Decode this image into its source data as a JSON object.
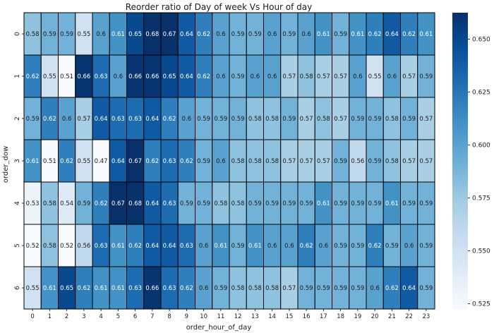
{
  "chart_data": {
    "type": "heatmap",
    "title": "Reorder ratio of Day of week Vs Hour of day",
    "xlabel": "order_hour_of_day",
    "ylabel": "order_dow",
    "x": [
      "0",
      "1",
      "2",
      "3",
      "4",
      "5",
      "6",
      "7",
      "8",
      "9",
      "10",
      "11",
      "12",
      "13",
      "14",
      "15",
      "16",
      "17",
      "18",
      "19",
      "20",
      "21",
      "22",
      "23"
    ],
    "y": [
      "0",
      "1",
      "2",
      "3",
      "4",
      "5",
      "6"
    ],
    "values": [
      [
        0.58,
        0.59,
        0.59,
        0.55,
        0.6,
        0.61,
        0.65,
        0.68,
        0.67,
        0.64,
        0.62,
        0.6,
        0.59,
        0.59,
        0.6,
        0.59,
        0.6,
        0.61,
        0.59,
        0.61,
        0.62,
        0.64,
        0.62,
        0.61
      ],
      [
        0.62,
        0.55,
        0.51,
        0.66,
        0.63,
        0.6,
        0.66,
        0.66,
        0.65,
        0.64,
        0.62,
        0.6,
        0.59,
        0.6,
        0.6,
        0.57,
        0.58,
        0.57,
        0.57,
        0.6,
        0.55,
        0.6,
        0.57,
        0.59
      ],
      [
        0.59,
        0.62,
        0.6,
        0.57,
        0.64,
        0.63,
        0.63,
        0.64,
        0.62,
        0.6,
        0.59,
        0.59,
        0.59,
        0.58,
        0.58,
        0.59,
        0.57,
        0.58,
        0.57,
        0.59,
        0.59,
        0.58,
        0.59,
        0.57
      ],
      [
        0.61,
        0.51,
        0.62,
        0.55,
        0.47,
        0.64,
        0.67,
        0.62,
        0.63,
        0.62,
        0.59,
        0.6,
        0.58,
        0.58,
        0.58,
        0.57,
        0.57,
        0.57,
        0.59,
        0.56,
        0.59,
        0.58,
        0.57,
        0.57
      ],
      [
        0.53,
        0.58,
        0.54,
        0.59,
        0.62,
        0.67,
        0.68,
        0.64,
        0.63,
        0.59,
        0.59,
        0.58,
        0.58,
        0.59,
        0.59,
        0.59,
        0.59,
        0.61,
        0.59,
        0.59,
        0.59,
        0.61,
        0.59,
        0.59
      ],
      [
        0.52,
        0.58,
        0.52,
        0.56,
        0.63,
        0.61,
        0.62,
        0.64,
        0.64,
        0.63,
        0.6,
        0.61,
        0.59,
        0.61,
        0.6,
        0.6,
        0.62,
        0.6,
        0.59,
        0.59,
        0.62,
        0.59,
        0.6,
        0.59
      ],
      [
        0.55,
        0.61,
        0.65,
        0.62,
        0.61,
        0.61,
        0.63,
        0.66,
        0.63,
        0.62,
        0.6,
        0.59,
        0.58,
        0.58,
        0.58,
        0.57,
        0.59,
        0.59,
        0.59,
        0.59,
        0.6,
        0.62,
        0.64,
        0.59
      ]
    ],
    "colormap": "Blues",
    "vmin": 0.5225,
    "vmax": 0.6625,
    "colorbar_ticks": [
      "0.525",
      "0.550",
      "0.575",
      "0.600",
      "0.625",
      "0.650"
    ],
    "cell_border_color": "#000000",
    "grid": false
  }
}
